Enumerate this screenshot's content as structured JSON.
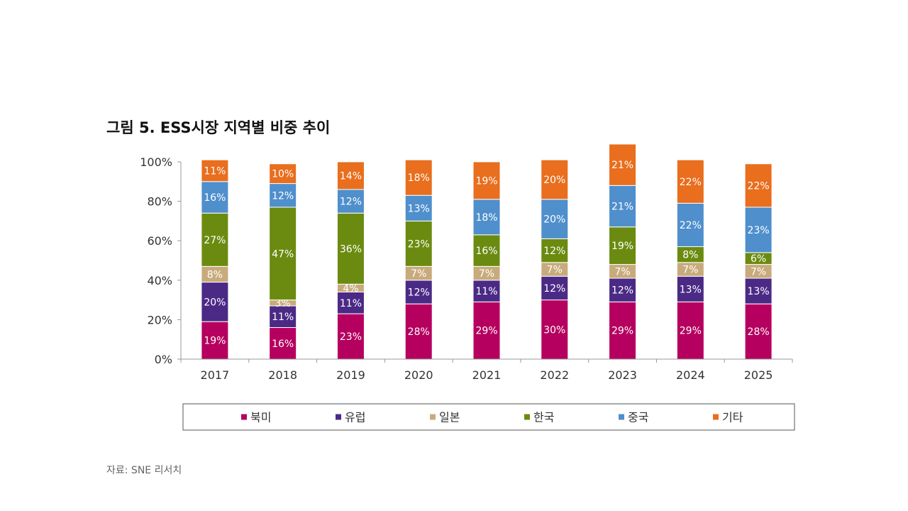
{
  "title": "그림 5. ESS시장 지역별 비중 추이",
  "source": "자료: SNE 리서치",
  "chart_data": {
    "type": "bar",
    "stacked": true,
    "percent_stacked": true,
    "categories": [
      "2017",
      "2018",
      "2019",
      "2020",
      "2021",
      "2022",
      "2023",
      "2024",
      "2025"
    ],
    "y_ticks": [
      "0%",
      "20%",
      "40%",
      "60%",
      "80%",
      "100%"
    ],
    "ylim": [
      0,
      100
    ],
    "grid": false,
    "legend_position": "bottom",
    "series": [
      {
        "name": "북미",
        "color": "#b5005f",
        "values": [
          19,
          16,
          23,
          28,
          29,
          30,
          29,
          29,
          28
        ],
        "labels": [
          "19%",
          "16%",
          "23%",
          "28%",
          "29%",
          "30%",
          "29%",
          "29%",
          "28%"
        ]
      },
      {
        "name": "유럽",
        "color": "#4b2a86",
        "values": [
          20,
          11,
          11,
          12,
          11,
          12,
          12,
          13,
          13
        ],
        "labels": [
          "20%",
          "11%",
          "11%",
          "12%",
          "11%",
          "12%",
          "12%",
          "13%",
          "13%"
        ]
      },
      {
        "name": "일본",
        "color": "#c8ab7c",
        "values": [
          8,
          3,
          4,
          7,
          7,
          7,
          7,
          7,
          7
        ],
        "labels": [
          "8%",
          "3%",
          "4%",
          "7%",
          "7%",
          "7%",
          "7%",
          "7%",
          "7%"
        ]
      },
      {
        "name": "한국",
        "color": "#6b8b10",
        "values": [
          27,
          47,
          36,
          23,
          16,
          12,
          19,
          8,
          6
        ],
        "labels": [
          "27%",
          "47%",
          "36%",
          "23%",
          "16%",
          "12%",
          "19%",
          "8%",
          "6%"
        ]
      },
      {
        "name": "중국",
        "color": "#4f8fcc",
        "values": [
          16,
          12,
          12,
          13,
          18,
          20,
          21,
          22,
          23
        ],
        "labels": [
          "16%",
          "12%",
          "12%",
          "13%",
          "18%",
          "20%",
          "21%",
          "22%",
          "23%"
        ]
      },
      {
        "name": "기타",
        "color": "#e96e1d",
        "values": [
          11,
          10,
          14,
          18,
          19,
          20,
          21,
          22,
          22
        ],
        "labels": [
          "11%",
          "10%",
          "14%",
          "18%",
          "19%",
          "20%",
          "21%",
          "22%",
          "22%"
        ]
      }
    ]
  }
}
